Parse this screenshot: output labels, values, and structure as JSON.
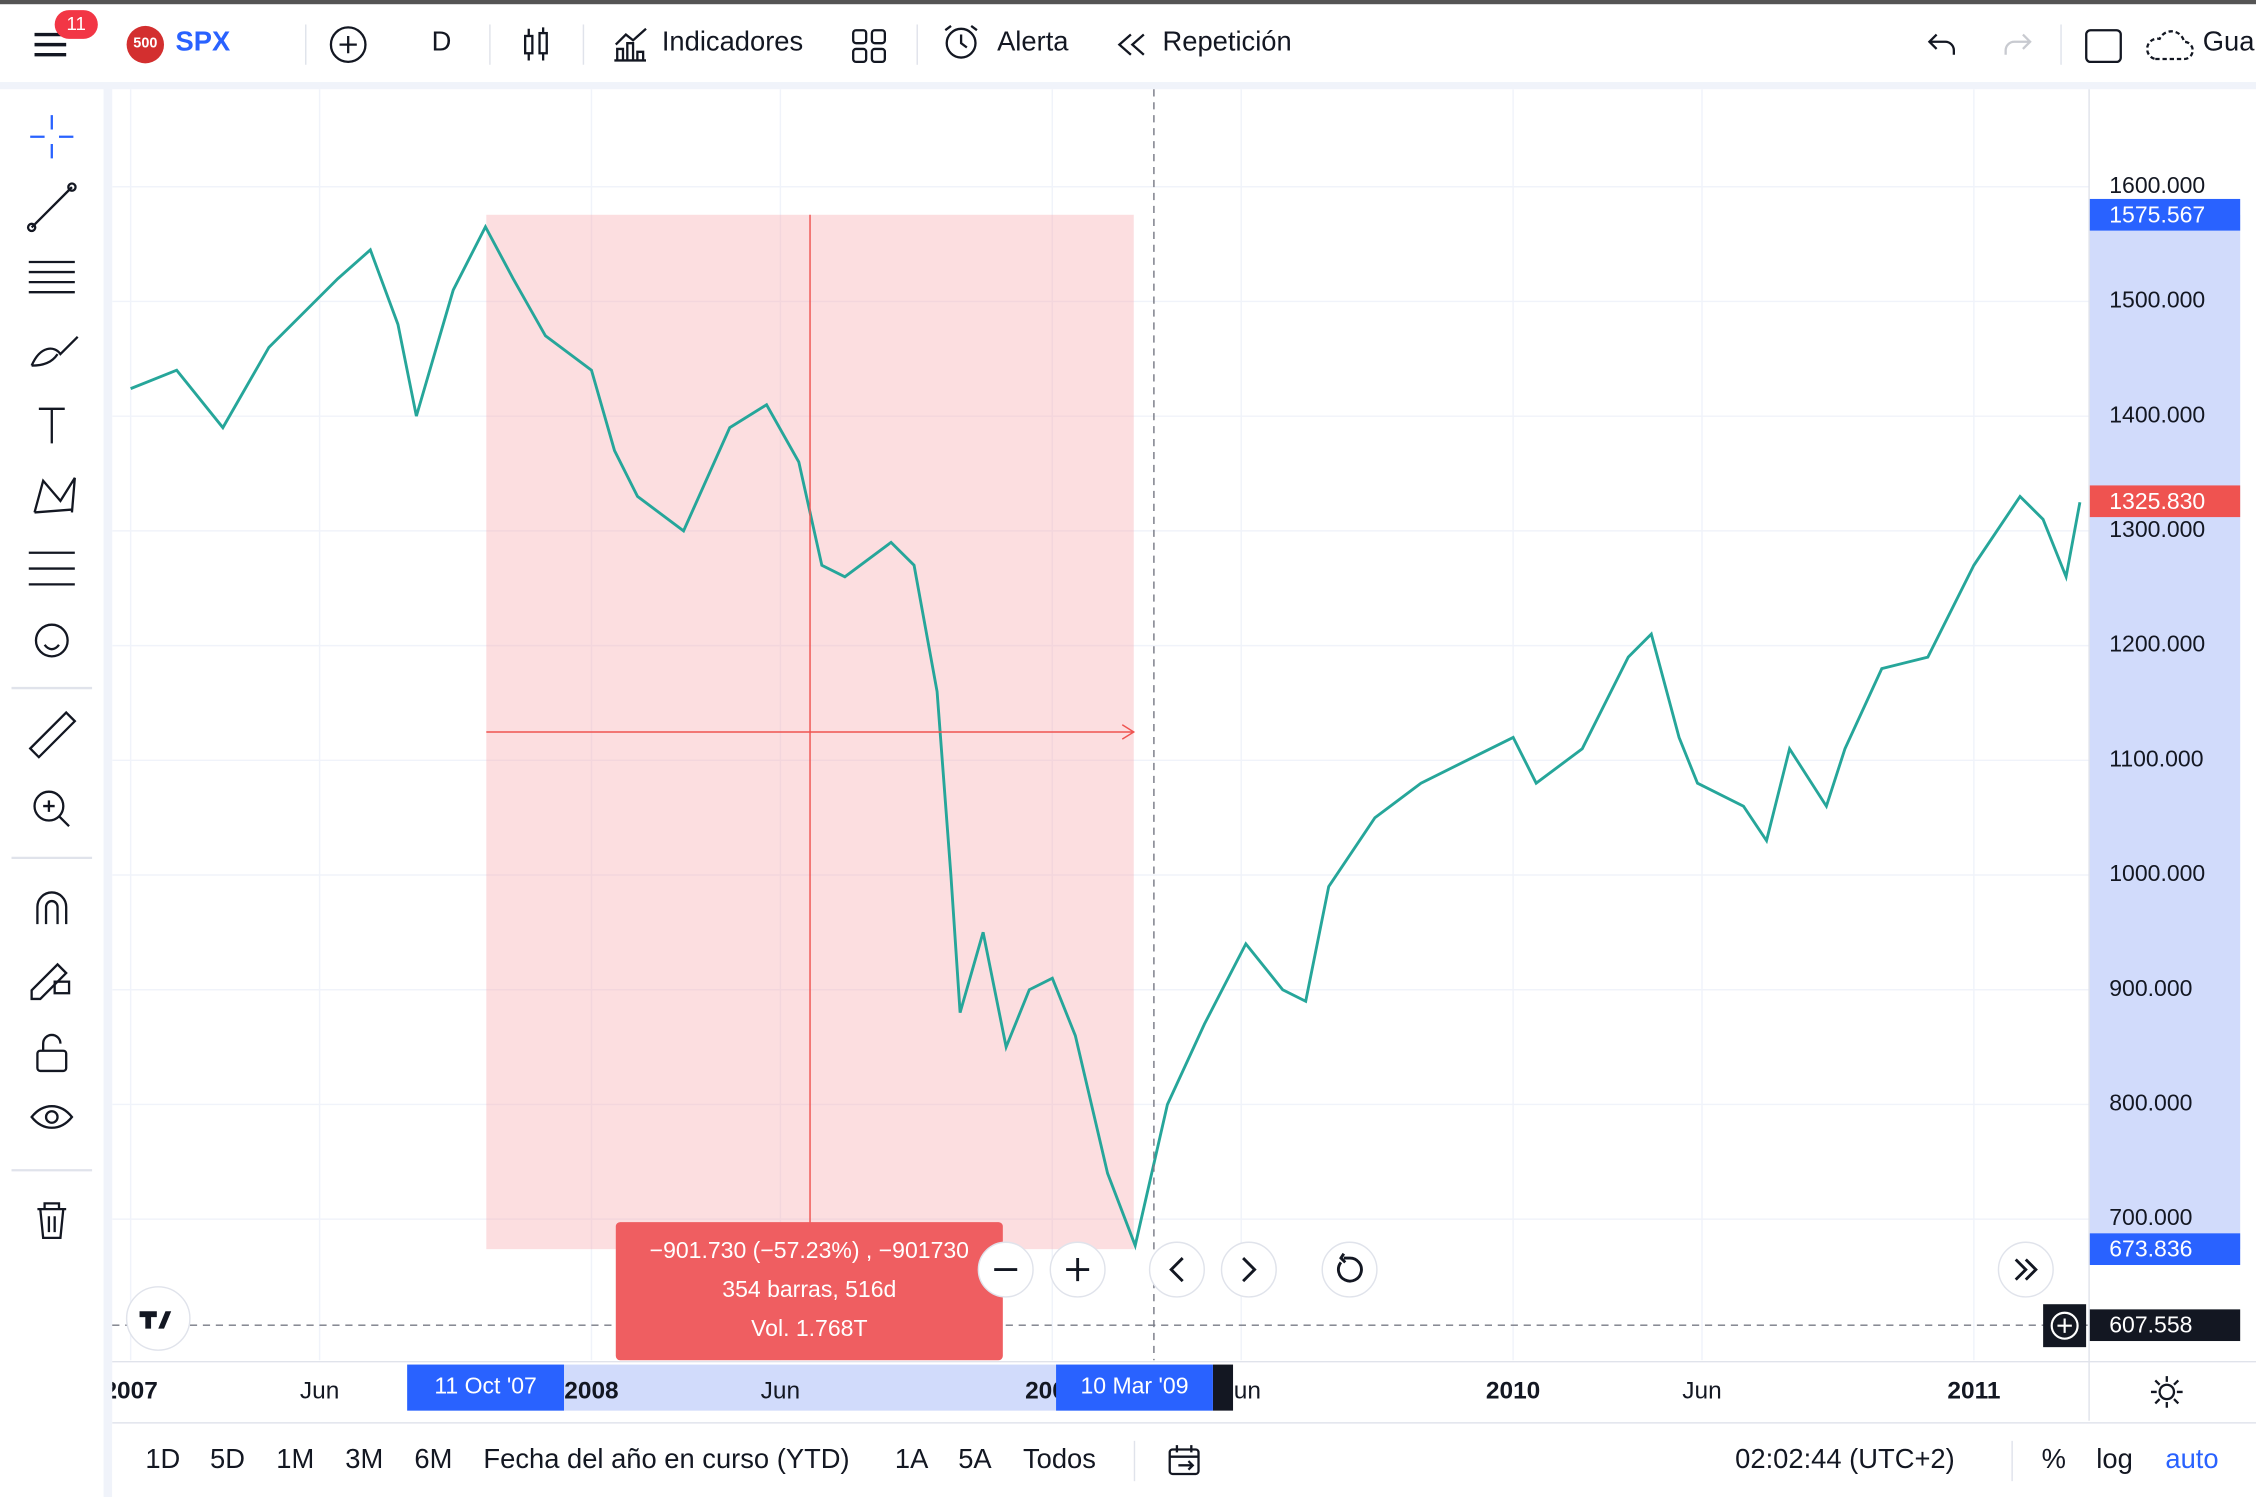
{
  "top_bar": {
    "badge": "11",
    "symbol_logo": "500",
    "symbol": "SPX",
    "interval": "D",
    "indicators": "Indicadores",
    "alert": "Alerta",
    "replay": "Repetición",
    "save": "Gua"
  },
  "chart_data": {
    "type": "line",
    "color": "#26a69a",
    "x": [
      2007.0,
      2007.1,
      2007.2,
      2007.3,
      2007.45,
      2007.52,
      2007.58,
      2007.62,
      2007.7,
      2007.77,
      2007.83,
      2007.9,
      2008.0,
      2008.05,
      2008.1,
      2008.2,
      2008.3,
      2008.38,
      2008.45,
      2008.5,
      2008.55,
      2008.65,
      2008.7,
      2008.75,
      2008.78,
      2008.8,
      2008.85,
      2008.9,
      2008.95,
      2009.0,
      2009.05,
      2009.12,
      2009.18,
      2009.25,
      2009.33,
      2009.42,
      2009.5,
      2009.55,
      2009.6,
      2009.7,
      2009.8,
      2009.9,
      2010.0,
      2010.05,
      2010.15,
      2010.25,
      2010.3,
      2010.36,
      2010.4,
      2010.5,
      2010.55,
      2010.6,
      2010.68,
      2010.72,
      2010.8,
      2010.9,
      2011.0,
      2011.1,
      2011.15,
      2011.2,
      2011.23
    ],
    "values": [
      1424,
      1440,
      1390,
      1460,
      1520,
      1545,
      1480,
      1400,
      1510,
      1565,
      1520,
      1470,
      1440,
      1370,
      1330,
      1300,
      1390,
      1410,
      1360,
      1270,
      1260,
      1290,
      1270,
      1160,
      1000,
      880,
      950,
      850,
      900,
      910,
      860,
      740,
      677,
      800,
      870,
      940,
      900,
      890,
      990,
      1050,
      1080,
      1100,
      1120,
      1080,
      1110,
      1190,
      1210,
      1120,
      1080,
      1060,
      1030,
      1110,
      1060,
      1110,
      1180,
      1190,
      1270,
      1330,
      1310,
      1260,
      1325
    ],
    "xlim": [
      2006.96,
      2011.25
    ],
    "xticks": [
      {
        "value": 2007.0,
        "label": "2007"
      },
      {
        "value": 2007.41,
        "label": "Jun"
      },
      {
        "value": 2008.0,
        "label": "2008"
      },
      {
        "value": 2008.41,
        "label": "Jun"
      },
      {
        "value": 2009.0,
        "label": "2009"
      },
      {
        "value": 2009.41,
        "label": "Jun"
      },
      {
        "value": 2010.0,
        "label": "2010"
      },
      {
        "value": 2010.41,
        "label": "Jun"
      },
      {
        "value": 2011.0,
        "label": "2011"
      }
    ],
    "ylim": [
      577,
      1685
    ],
    "yticks": [
      {
        "value": 700,
        "label": "700.000"
      },
      {
        "value": 800,
        "label": "800.000"
      },
      {
        "value": 900,
        "label": "900.000"
      },
      {
        "value": 1000,
        "label": "1000.000"
      },
      {
        "value": 1100,
        "label": "1100.000"
      },
      {
        "value": 1200,
        "label": "1200.000"
      },
      {
        "value": 1300,
        "label": "1300.000"
      },
      {
        "value": 1400,
        "label": "1400.000"
      },
      {
        "value": 1500,
        "label": "1500.000"
      },
      {
        "value": 1600,
        "label": "1600.000"
      }
    ],
    "grid": true,
    "price_labels": [
      {
        "value": 1575.567,
        "label": "1575.567",
        "color": "#2962ff"
      },
      {
        "value": 1325.83,
        "label": "1325.830",
        "color": "#ef5350"
      },
      {
        "value": 673.836,
        "label": "673.836",
        "color": "#2962ff"
      },
      {
        "value": 607.558,
        "label": "607.558",
        "color": "#131722"
      }
    ]
  },
  "measure": {
    "change": "−901.730 (−57.23%) , −901730",
    "bars": "354 barras, 516d",
    "volume": "Vol. 1.768T",
    "start": "11 Oct '07",
    "end": "10 Mar '09"
  },
  "bottom_bar": {
    "ranges": [
      "1D",
      "5D",
      "1M",
      "3M",
      "6M",
      "Fecha del año en curso (YTD)",
      "1A",
      "5A",
      "Todos"
    ],
    "time": "02:02:44 (UTC+2)",
    "percent": "%",
    "log": "log",
    "auto": "auto"
  }
}
